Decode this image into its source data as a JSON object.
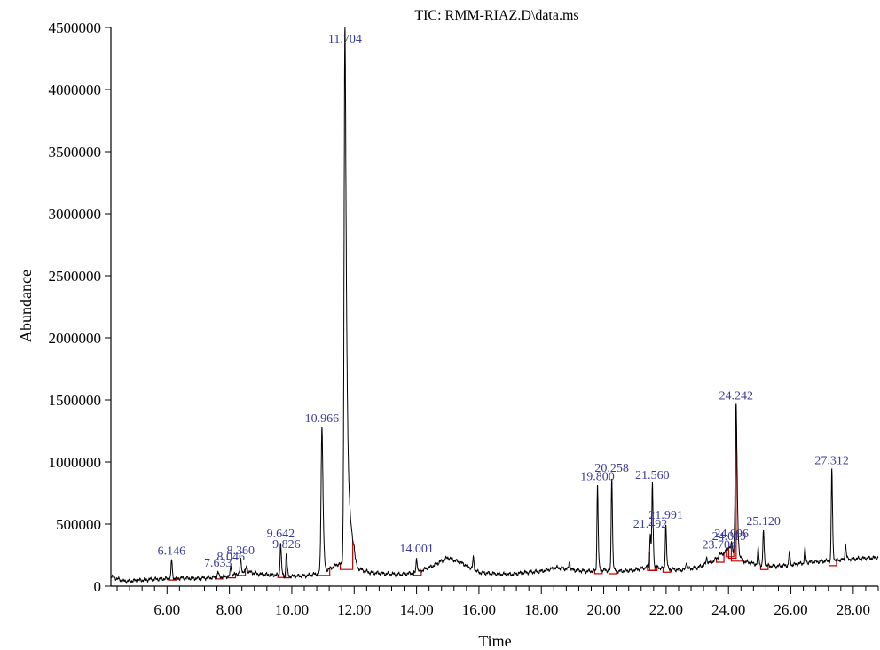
{
  "chart_data": {
    "type": "line",
    "title": "TIC: RMM-RIAZ.D\\data.ms",
    "xlabel": "Time",
    "ylabel": "Abundance",
    "xlim": [
      4.2,
      28.8
    ],
    "ylim": [
      0,
      4500000
    ],
    "x_ticks": [
      6,
      8,
      10,
      12,
      14,
      16,
      18,
      20,
      22,
      24,
      26,
      28
    ],
    "x_tick_labels": [
      "6.00",
      "8.00",
      "10.00",
      "12.00",
      "14.00",
      "16.00",
      "18.00",
      "20.00",
      "22.00",
      "24.00",
      "26.00",
      "28.00"
    ],
    "y_ticks": [
      0,
      500000,
      1000000,
      1500000,
      2000000,
      2500000,
      3000000,
      3500000,
      4000000,
      4500000
    ],
    "y_tick_labels": [
      "0",
      "500000",
      "1000000",
      "1500000",
      "2000000",
      "2500000",
      "3000000",
      "3500000",
      "4000000",
      "4500000"
    ],
    "grid": false,
    "line_color": "#000000",
    "label_color": "#3a3aa0",
    "integration_color": "#c00000",
    "baseline": [
      [
        4.2,
        80000
      ],
      [
        4.6,
        40000
      ],
      [
        5.0,
        45000
      ],
      [
        5.5,
        55000
      ],
      [
        6.0,
        60000
      ],
      [
        6.5,
        65000
      ],
      [
        7.0,
        62000
      ],
      [
        7.5,
        70000
      ],
      [
        8.0,
        80000
      ],
      [
        8.5,
        120000
      ],
      [
        9.0,
        95000
      ],
      [
        9.5,
        90000
      ],
      [
        10.0,
        80000
      ],
      [
        10.5,
        85000
      ],
      [
        11.0,
        110000
      ],
      [
        11.5,
        180000
      ],
      [
        12.0,
        150000
      ],
      [
        12.5,
        110000
      ],
      [
        13.0,
        100000
      ],
      [
        13.5,
        95000
      ],
      [
        14.0,
        110000
      ],
      [
        14.5,
        160000
      ],
      [
        15.0,
        230000
      ],
      [
        15.5,
        180000
      ],
      [
        16.0,
        110000
      ],
      [
        16.5,
        100000
      ],
      [
        17.0,
        95000
      ],
      [
        17.5,
        110000
      ],
      [
        18.0,
        120000
      ],
      [
        18.5,
        150000
      ],
      [
        19.0,
        130000
      ],
      [
        19.5,
        120000
      ],
      [
        20.0,
        130000
      ],
      [
        20.5,
        120000
      ],
      [
        21.0,
        130000
      ],
      [
        21.5,
        160000
      ],
      [
        22.0,
        140000
      ],
      [
        22.5,
        130000
      ],
      [
        23.0,
        150000
      ],
      [
        23.5,
        200000
      ],
      [
        24.0,
        300000
      ],
      [
        24.5,
        200000
      ],
      [
        25.0,
        170000
      ],
      [
        25.5,
        160000
      ],
      [
        26.0,
        170000
      ],
      [
        26.5,
        190000
      ],
      [
        27.0,
        200000
      ],
      [
        27.5,
        210000
      ],
      [
        28.0,
        220000
      ],
      [
        28.8,
        230000
      ]
    ],
    "peaks": [
      {
        "rt": 6.146,
        "height": 210000,
        "label": "6.146"
      },
      {
        "rt": 7.633,
        "height": 115000,
        "label": "7.633"
      },
      {
        "rt": 8.046,
        "height": 165000,
        "label": "8.046"
      },
      {
        "rt": 8.36,
        "height": 215000,
        "label": "8.360"
      },
      {
        "rt": 8.55,
        "height": 160000,
        "label": ""
      },
      {
        "rt": 9.642,
        "height": 350000,
        "label": "9.642"
      },
      {
        "rt": 9.826,
        "height": 265000,
        "label": "9.826"
      },
      {
        "rt": 10.966,
        "height": 1280000,
        "label": "10.966"
      },
      {
        "rt": 11.704,
        "height": 4500000,
        "label": "11.704"
      },
      {
        "rt": 14.001,
        "height": 230000,
        "label": "14.001"
      },
      {
        "rt": 15.82,
        "height": 230000,
        "label": ""
      },
      {
        "rt": 18.9,
        "height": 200000,
        "label": ""
      },
      {
        "rt": 19.8,
        "height": 810000,
        "label": "19.800"
      },
      {
        "rt": 20.258,
        "height": 880000,
        "label": "20.258"
      },
      {
        "rt": 21.492,
        "height": 430000,
        "label": "21.492"
      },
      {
        "rt": 21.56,
        "height": 820000,
        "label": "21.560"
      },
      {
        "rt": 21.991,
        "height": 500000,
        "label": "21.991"
      },
      {
        "rt": 22.65,
        "height": 200000,
        "label": ""
      },
      {
        "rt": 23.3,
        "height": 230000,
        "label": ""
      },
      {
        "rt": 23.704,
        "height": 260000,
        "label": "23.704"
      },
      {
        "rt": 24.019,
        "height": 330000,
        "label": "24.019"
      },
      {
        "rt": 24.096,
        "height": 350000,
        "label": "24.096"
      },
      {
        "rt": 24.242,
        "height": 1460000,
        "label": "24.242"
      },
      {
        "rt": 24.95,
        "height": 300000,
        "label": ""
      },
      {
        "rt": 25.12,
        "height": 450000,
        "label": "25.120"
      },
      {
        "rt": 25.95,
        "height": 270000,
        "label": ""
      },
      {
        "rt": 26.45,
        "height": 300000,
        "label": ""
      },
      {
        "rt": 27.312,
        "height": 940000,
        "label": "27.312"
      },
      {
        "rt": 27.75,
        "height": 340000,
        "label": ""
      }
    ]
  }
}
